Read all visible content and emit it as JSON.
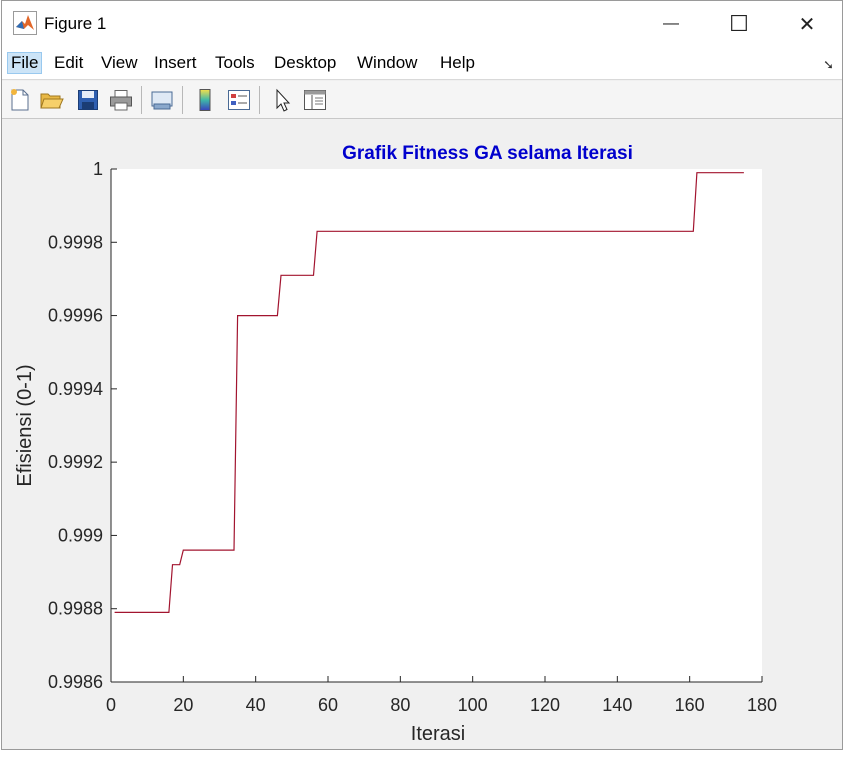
{
  "window": {
    "title": "Figure 1",
    "minimize_symbol": "—",
    "maximize_symbol": "☐",
    "close_symbol": "✕"
  },
  "menu": {
    "items": [
      "File",
      "Edit",
      "View",
      "Insert",
      "Tools",
      "Desktop",
      "Window",
      "Help"
    ],
    "active": "File",
    "dock_symbol": "➘"
  },
  "toolbar": {
    "icons": [
      "new-figure-icon",
      "open-file-icon",
      "save-icon",
      "print-icon",
      "link-plot-icon",
      "insert-colorbar-icon",
      "insert-legend-icon",
      "edit-plot-arrow-icon",
      "property-inspector-icon"
    ]
  },
  "chart_data": {
    "type": "line",
    "title": "Grafik Fitness GA selama Iterasi",
    "xlabel": "Iterasi",
    "ylabel": "Efisiensi (0-1)",
    "xlim": [
      0,
      180
    ],
    "ylim": [
      0.9986,
      1.0
    ],
    "xticks": [
      "0",
      "20",
      "40",
      "60",
      "80",
      "100",
      "120",
      "140",
      "160",
      "180"
    ],
    "yticks": [
      "0.9986",
      "0.9988",
      "0.999",
      "0.9992",
      "0.9994",
      "0.9996",
      "0.9998",
      "1"
    ],
    "colors": {
      "title": "#0000cd",
      "line": "#a2142f"
    },
    "grid": false,
    "series": [
      {
        "step_points": [
          [
            1,
            0.99879
          ],
          [
            16,
            0.99879
          ],
          [
            17,
            0.99892
          ],
          [
            19,
            0.99892
          ],
          [
            20,
            0.99896
          ],
          [
            34,
            0.99896
          ],
          [
            35,
            0.9996
          ],
          [
            46,
            0.9996
          ],
          [
            47,
            0.99971
          ],
          [
            56,
            0.99971
          ],
          [
            57,
            0.99983
          ],
          [
            161,
            0.99983
          ],
          [
            162,
            0.99999
          ],
          [
            175,
            0.99999
          ]
        ]
      }
    ]
  }
}
